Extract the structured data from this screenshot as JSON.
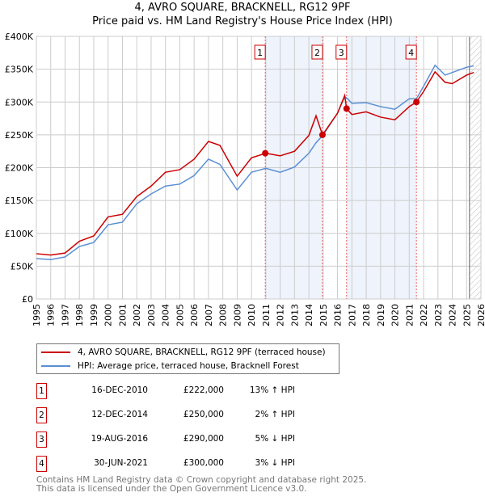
{
  "chart_data": {
    "type": "line",
    "title": "4, AVRO SQUARE, BRACKNELL, RG12 9PF",
    "subtitle": "Price paid vs. HM Land Registry's House Price Index (HPI)",
    "xlim": [
      1995,
      2026
    ],
    "ylim": [
      0,
      400000
    ],
    "yticks": [
      0,
      50000,
      100000,
      150000,
      200000,
      250000,
      300000,
      350000,
      400000
    ],
    "ytick_labels": [
      "£0",
      "£50K",
      "£100K",
      "£150K",
      "£200K",
      "£250K",
      "£300K",
      "£350K",
      "£400K"
    ],
    "xticks": [
      "1995",
      "1996",
      "1997",
      "1998",
      "1999",
      "2000",
      "2001",
      "2002",
      "2003",
      "2004",
      "2005",
      "2006",
      "2007",
      "2008",
      "2009",
      "2010",
      "2011",
      "2012",
      "2013",
      "2014",
      "2015",
      "2016",
      "2017",
      "2018",
      "2019",
      "2020",
      "2021",
      "2022",
      "2023",
      "2024",
      "2025",
      "2026"
    ],
    "grid": true,
    "series": [
      {
        "name": "4, AVRO SQUARE, BRACKNELL, RG12 9PF (terraced house)",
        "color": "#cc0000",
        "x": [
          1995,
          1996,
          1997,
          1998,
          1999,
          2000,
          2001,
          2002,
          2003,
          2004,
          2005,
          2006,
          2007,
          2007.8,
          2009,
          2010,
          2011,
          2012,
          2013,
          2014,
          2014.5,
          2014.95,
          2016,
          2016.5,
          2016.63,
          2017,
          2018,
          2019,
          2020,
          2021,
          2021.5,
          2022,
          2022.8,
          2023.5,
          2024,
          2025,
          2025.5
        ],
        "y": [
          69000,
          67000,
          70000,
          88000,
          96000,
          125000,
          129000,
          156000,
          172000,
          193000,
          197000,
          213000,
          240000,
          234000,
          187000,
          215000,
          222000,
          218000,
          225000,
          249000,
          279000,
          250000,
          283000,
          310000,
          290000,
          281000,
          285000,
          277000,
          273000,
          293000,
          300000,
          316000,
          346000,
          330000,
          328000,
          341000,
          345000
        ]
      },
      {
        "name": "HPI: Average price, terraced house, Bracknell Forest",
        "color": "#5b8fd4",
        "x": [
          1995,
          1996,
          1997,
          1998,
          1999,
          2000,
          2001,
          2002,
          2003,
          2004,
          2005,
          2006,
          2007,
          2007.8,
          2009,
          2010,
          2011,
          2012,
          2013,
          2014,
          2014.5,
          2015,
          2016,
          2016.5,
          2016.7,
          2017,
          2018,
          2019,
          2020,
          2021,
          2021.5,
          2022,
          2022.8,
          2023.5,
          2024,
          2025,
          2025.5
        ],
        "y": [
          61500,
          60000,
          64000,
          80000,
          86000,
          113000,
          117000,
          145000,
          160000,
          172000,
          175000,
          188000,
          213000,
          205000,
          166000,
          193000,
          199000,
          193000,
          201000,
          222000,
          238000,
          250000,
          283000,
          308000,
          305000,
          298000,
          299000,
          293000,
          289000,
          305000,
          305000,
          324000,
          356000,
          341000,
          345000,
          353000,
          355000
        ]
      }
    ],
    "sales": [
      {
        "label": "1",
        "x": 2010.96,
        "date": "16-DEC-2010",
        "price": 222000,
        "price_label": "£222,000",
        "hpi": "13% ↑ HPI"
      },
      {
        "label": "2",
        "x": 2014.95,
        "date": "12-DEC-2014",
        "price": 250000,
        "price_label": "£250,000",
        "hpi": "2% ↑ HPI"
      },
      {
        "label": "3",
        "x": 2016.63,
        "date": "19-AUG-2016",
        "price": 290000,
        "price_label": "£290,000",
        "hpi": "5% ↓ HPI"
      },
      {
        "label": "4",
        "x": 2021.5,
        "date": "30-JUN-2021",
        "price": 300000,
        "price_label": "£300,000",
        "hpi": "3% ↓ HPI"
      }
    ],
    "shaded": [
      [
        2010.96,
        2014.95
      ],
      [
        2016.63,
        2021.5
      ]
    ],
    "forecast_from": 2025.2
  },
  "footer": {
    "line1": "Contains HM Land Registry data © Crown copyright and database right 2025.",
    "line2": "This data is licensed under the Open Government Licence v3.0."
  }
}
